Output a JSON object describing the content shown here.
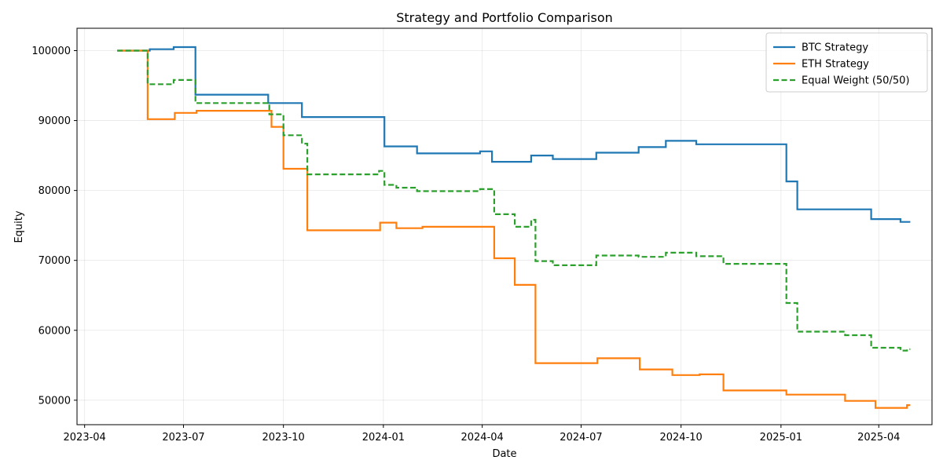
{
  "chart_data": {
    "type": "line",
    "title": "Strategy and Portfolio Comparison",
    "xlabel": "Date",
    "ylabel": "Equity",
    "x_type": "date",
    "xlim": [
      "2023-03-25",
      "2025-05-20"
    ],
    "ylim": [
      46500,
      103200
    ],
    "x_ticks": [
      {
        "date": "2023-04-01",
        "label": "2023-04"
      },
      {
        "date": "2023-07-01",
        "label": "2023-07"
      },
      {
        "date": "2023-10-01",
        "label": "2023-10"
      },
      {
        "date": "2024-01-01",
        "label": "2024-01"
      },
      {
        "date": "2024-04-01",
        "label": "2024-04"
      },
      {
        "date": "2024-07-01",
        "label": "2024-07"
      },
      {
        "date": "2024-10-01",
        "label": "2024-10"
      },
      {
        "date": "2025-01-01",
        "label": "2025-01"
      },
      {
        "date": "2025-04-01",
        "label": "2025-04"
      }
    ],
    "y_ticks": [
      50000,
      60000,
      70000,
      80000,
      90000,
      100000
    ],
    "grid": true,
    "legend_position": "top-right",
    "series": [
      {
        "name": "BTC Strategy",
        "color": "#1f77b4",
        "style": "solid",
        "step": true,
        "points": [
          [
            "2023-05-01",
            100000
          ],
          [
            "2023-05-31",
            100200
          ],
          [
            "2023-06-22",
            100500
          ],
          [
            "2023-07-12",
            93700
          ],
          [
            "2023-09-17",
            92500
          ],
          [
            "2023-10-18",
            90500
          ],
          [
            "2024-01-02",
            86300
          ],
          [
            "2024-02-01",
            85300
          ],
          [
            "2024-03-30",
            85600
          ],
          [
            "2024-04-10",
            84100
          ],
          [
            "2024-05-16",
            85000
          ],
          [
            "2024-06-05",
            84500
          ],
          [
            "2024-07-15",
            85400
          ],
          [
            "2024-08-23",
            86200
          ],
          [
            "2024-09-17",
            87100
          ],
          [
            "2024-10-15",
            86600
          ],
          [
            "2025-01-06",
            81300
          ],
          [
            "2025-01-16",
            77300
          ],
          [
            "2025-03-25",
            75900
          ],
          [
            "2025-04-21",
            75500
          ],
          [
            "2025-04-30",
            75500
          ]
        ]
      },
      {
        "name": "ETH Strategy",
        "color": "#ff7f0e",
        "style": "solid",
        "step": true,
        "points": [
          [
            "2023-05-01",
            100000
          ],
          [
            "2023-05-29",
            90200
          ],
          [
            "2023-06-23",
            91100
          ],
          [
            "2023-07-13",
            91400
          ],
          [
            "2023-09-20",
            89100
          ],
          [
            "2023-10-01",
            83100
          ],
          [
            "2023-10-23",
            74300
          ],
          [
            "2023-12-29",
            75400
          ],
          [
            "2024-01-13",
            74600
          ],
          [
            "2024-02-06",
            74800
          ],
          [
            "2024-04-12",
            70300
          ],
          [
            "2024-05-01",
            66500
          ],
          [
            "2024-05-20",
            55300
          ],
          [
            "2024-07-16",
            56000
          ],
          [
            "2024-08-24",
            54400
          ],
          [
            "2024-09-23",
            53600
          ],
          [
            "2024-10-18",
            53700
          ],
          [
            "2024-11-09",
            51400
          ],
          [
            "2025-01-06",
            50800
          ],
          [
            "2025-03-01",
            49900
          ],
          [
            "2025-03-29",
            48900
          ],
          [
            "2025-04-27",
            49300
          ],
          [
            "2025-04-30",
            49300
          ]
        ]
      },
      {
        "name": "Equal Weight (50/50)",
        "color": "#2ca02c",
        "style": "dashed",
        "step": true,
        "points": [
          [
            "2023-05-01",
            100000
          ],
          [
            "2023-05-29",
            95200
          ],
          [
            "2023-06-22",
            95800
          ],
          [
            "2023-07-12",
            92500
          ],
          [
            "2023-09-18",
            90900
          ],
          [
            "2023-10-01",
            87900
          ],
          [
            "2023-10-18",
            86700
          ],
          [
            "2023-10-23",
            82300
          ],
          [
            "2023-12-28",
            82800
          ],
          [
            "2024-01-02",
            80800
          ],
          [
            "2024-01-13",
            80400
          ],
          [
            "2024-02-01",
            79900
          ],
          [
            "2024-03-30",
            80200
          ],
          [
            "2024-04-12",
            76600
          ],
          [
            "2024-05-01",
            74800
          ],
          [
            "2024-05-16",
            75800
          ],
          [
            "2024-05-20",
            69900
          ],
          [
            "2024-06-05",
            69300
          ],
          [
            "2024-07-15",
            70700
          ],
          [
            "2024-08-23",
            70500
          ],
          [
            "2024-09-17",
            71100
          ],
          [
            "2024-10-15",
            70600
          ],
          [
            "2024-11-09",
            69500
          ],
          [
            "2025-01-06",
            63900
          ],
          [
            "2025-01-16",
            59800
          ],
          [
            "2025-03-01",
            59300
          ],
          [
            "2025-03-25",
            57500
          ],
          [
            "2025-04-21",
            57100
          ],
          [
            "2025-04-27",
            57300
          ],
          [
            "2025-04-30",
            57300
          ]
        ]
      }
    ]
  }
}
